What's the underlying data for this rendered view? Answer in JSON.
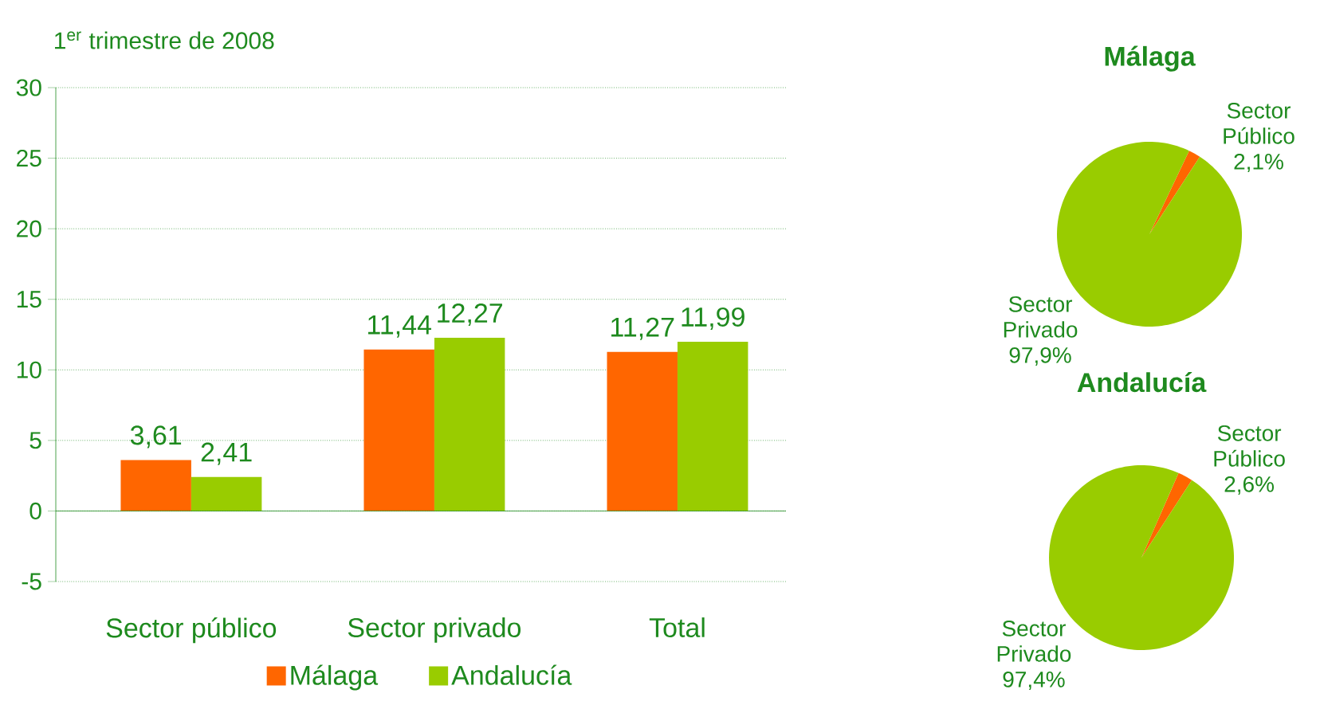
{
  "chart_data": [
    {
      "type": "bar",
      "title": "1$^{er}$ trimestre de 2008",
      "categories": [
        "Sector público",
        "Sector privado",
        "Total"
      ],
      "series": [
        {
          "name": "Málaga",
          "color": "#ff6600",
          "values": [
            3.61,
            11.44,
            11.27
          ],
          "value_labels": [
            "3,61",
            "11,44",
            "11,27"
          ]
        },
        {
          "name": "Andalucía",
          "color": "#99cc00",
          "values": [
            2.41,
            12.27,
            11.99
          ],
          "value_labels": [
            "2,41",
            "12,27",
            "11,99"
          ]
        }
      ],
      "ylim": [
        -5,
        30
      ],
      "yticks": [
        -5,
        0,
        5,
        10,
        15,
        20,
        25,
        30
      ],
      "grid": "y",
      "legend": "bottom",
      "ref_lines": [
        {
          "axis": "y",
          "value": 0,
          "color": "#1e8a1e"
        }
      ]
    },
    {
      "type": "pie",
      "title": "Málaga",
      "categories": [
        "Sector Público",
        "Sector Privado"
      ],
      "values": [
        2.1,
        97.9
      ],
      "colors": [
        "#ff6600",
        "#99cc00"
      ],
      "value_labels": [
        "2,1%",
        "97,9%"
      ]
    },
    {
      "type": "pie",
      "title": "Andalucía",
      "categories": [
        "Sector Público",
        "Sector Privado"
      ],
      "values": [
        2.6,
        97.4
      ],
      "colors": [
        "#ff6600",
        "#99cc00"
      ],
      "value_labels": [
        "2,6%",
        "97,4%"
      ]
    }
  ]
}
